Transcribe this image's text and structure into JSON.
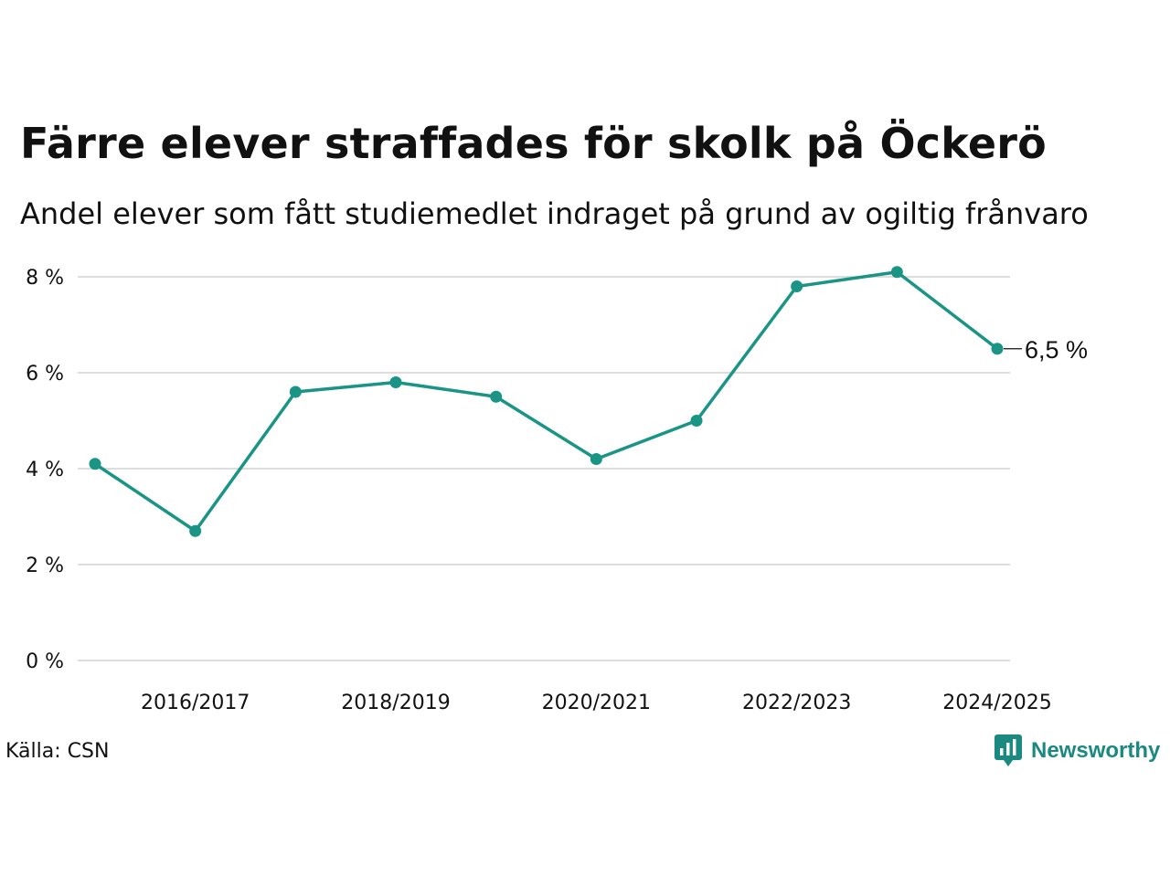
{
  "title": "Färre elever straffades för skolk på Öckerö",
  "subtitle": "Andel elever som fått studiemedlet indraget på grund av ogiltig frånvaro",
  "source": "Källa: CSN",
  "brand": {
    "name": "Newsworthy",
    "icon": "newsworthy-logo-icon"
  },
  "colors": {
    "line": "#1a9585",
    "grid": "#dddddd",
    "text": "#111111"
  },
  "chart_data": {
    "type": "line",
    "title": "Färre elever straffades för skolk på Öckerö",
    "subtitle": "Andel elever som fått studiemedlet indraget på grund av ogiltig frånvaro",
    "x": [
      "2015/2016",
      "2016/2017",
      "2017/2018",
      "2018/2019",
      "2019/2020",
      "2020/2021",
      "2021/2022",
      "2022/2023",
      "2023/2024",
      "2024/2025"
    ],
    "x_tick_labels": [
      "2016/2017",
      "2018/2019",
      "2020/2021",
      "2022/2023",
      "2024/2025"
    ],
    "series": [
      {
        "values": [
          4.1,
          2.7,
          5.6,
          5.8,
          5.5,
          4.2,
          5.0,
          7.8,
          8.1,
          6.5
        ]
      }
    ],
    "y_ticks": [
      0,
      2,
      4,
      6,
      8
    ],
    "y_tick_labels": [
      "0 %",
      "2 %",
      "4 %",
      "6 %",
      "8 %"
    ],
    "ylim": [
      0,
      8
    ],
    "grid": true,
    "last_value_label": "6,5 %"
  }
}
